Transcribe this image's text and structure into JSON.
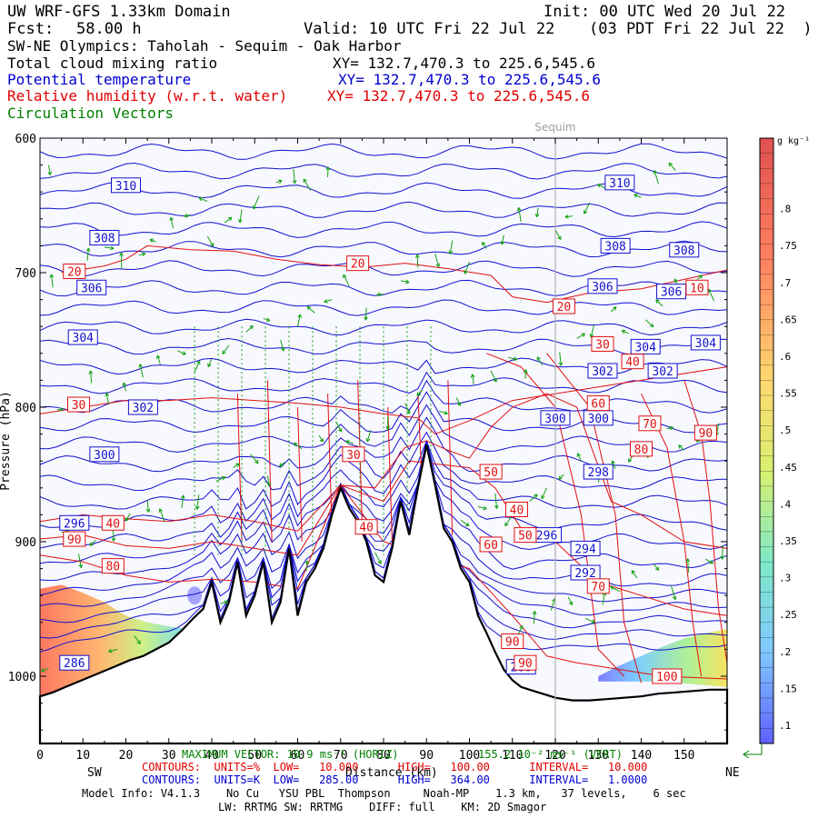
{
  "header": {
    "title": "UW WRF-GFS 1.33km Domain",
    "init": "Init: 00 UTC Wed 20 Jul 22",
    "fcst_label": "Fcst:",
    "fcst_value": "58.00 h",
    "valid": "Valid: 10 UTC Fri 22 Jul 22",
    "valid_local": "(03 PDT Fri 22 Jul 22  )",
    "cross_section": "SW-NE Olympics: Taholah - Sequim - Oak Harbor"
  },
  "fields": [
    {
      "name": "Total cloud mixing ratio",
      "xy": "XY= 132.7,470.3 to 225.6,545.6",
      "color": "#000000"
    },
    {
      "name": "Potential temperature",
      "xy": "XY= 132.7,470.3 to 225.6,545.6",
      "color": "#0000d0"
    },
    {
      "name": "Relative humidity (w.r.t. water)",
      "xy": "XY= 132.7,470.3 to 225.6,545.6",
      "color": "#e00000"
    },
    {
      "name": "Circulation Vectors",
      "xy": "",
      "color": "#008000"
    }
  ],
  "chart_data": {
    "type": "contour",
    "xlabel": "Distance (km)",
    "ylabel": "Pressure (hPa)",
    "xlim": [
      0,
      160
    ],
    "ylim": [
      1050,
      600
    ],
    "x_ticks": [
      0,
      10,
      20,
      30,
      40,
      50,
      60,
      70,
      80,
      90,
      100,
      110,
      120,
      130,
      140,
      150
    ],
    "y_ticks": [
      600,
      700,
      800,
      900,
      1000
    ],
    "endpoints": {
      "left": "SW",
      "right": "NE"
    },
    "marker": {
      "label": "Sequim",
      "x": 120
    },
    "terrain": {
      "x": [
        0,
        3,
        6,
        9,
        12,
        15,
        18,
        21,
        24,
        27,
        30,
        33,
        36,
        38,
        40,
        42,
        44,
        46,
        48,
        50,
        52,
        54,
        56,
        58,
        60,
        62,
        64,
        66,
        68,
        70,
        72,
        74,
        76,
        78,
        80,
        82,
        84,
        86,
        88,
        90,
        92,
        94,
        96,
        98,
        100,
        102,
        104,
        106,
        108,
        110,
        112,
        114,
        116,
        118,
        120,
        124,
        128,
        132,
        136,
        140,
        144,
        148,
        152,
        156,
        160
      ],
      "p": [
        1015,
        1012,
        1008,
        1004,
        1000,
        996,
        992,
        988,
        985,
        980,
        975,
        966,
        956,
        950,
        930,
        960,
        945,
        915,
        955,
        940,
        915,
        960,
        945,
        905,
        955,
        930,
        920,
        905,
        880,
        860,
        875,
        885,
        900,
        925,
        930,
        905,
        870,
        895,
        860,
        828,
        858,
        890,
        900,
        920,
        930,
        955,
        968,
        982,
        995,
        1003,
        1008,
        1010,
        1012,
        1014,
        1016,
        1018,
        1018,
        1017,
        1016,
        1015,
        1013,
        1012,
        1011,
        1010,
        1010
      ]
    },
    "theta_contours": {
      "units": "K",
      "labels": [
        310,
        308,
        306,
        304,
        302,
        300,
        298,
        296,
        294,
        292,
        286
      ],
      "low": "285.00",
      "high": "364.00",
      "interval": "1.0000"
    },
    "rh_contours": {
      "units": "%",
      "labels": [
        10,
        20,
        30,
        40,
        50,
        60,
        70,
        80,
        90,
        100
      ],
      "low": "10.000",
      "high": "100.00",
      "interval": "10.000"
    },
    "colorbar": {
      "units": "g kg⁻¹",
      "ticks": [
        ".1",
        ".15",
        ".2",
        ".25",
        ".3",
        ".35",
        ".4",
        ".45",
        ".5",
        ".55",
        ".6",
        ".65",
        ".7",
        ".75",
        ".8"
      ]
    },
    "max_vector": {
      "horizontal": "10.9",
      "vertical": "155.2",
      "units": "ms⁻¹"
    }
  },
  "footer": {
    "max_vector_label": "MAXIMUM VECTOR: 10.9 ms⁻¹ (HORIZ)",
    "max_vector_vert": "155.2 10⁻² ms⁻¹ (VERT)",
    "red_contours": "CONTOURS:  UNITS=%  LOW=   10.000      HIGH=   100.00      INTERVAL=   10.000",
    "blue_contours": "CONTOURS:  UNITS=K  LOW=   285.00      HIGH=   364.00      INTERVAL=   1.0000",
    "model_info": "Model Info: V4.1.3    No Cu   YSU PBL  Thompson     Noah-MP    1.3 km,   37 levels,    6 sec",
    "physics": "LW: RRTMG SW: RRTMG    DIFF: full    KM: 2D Smagor"
  }
}
